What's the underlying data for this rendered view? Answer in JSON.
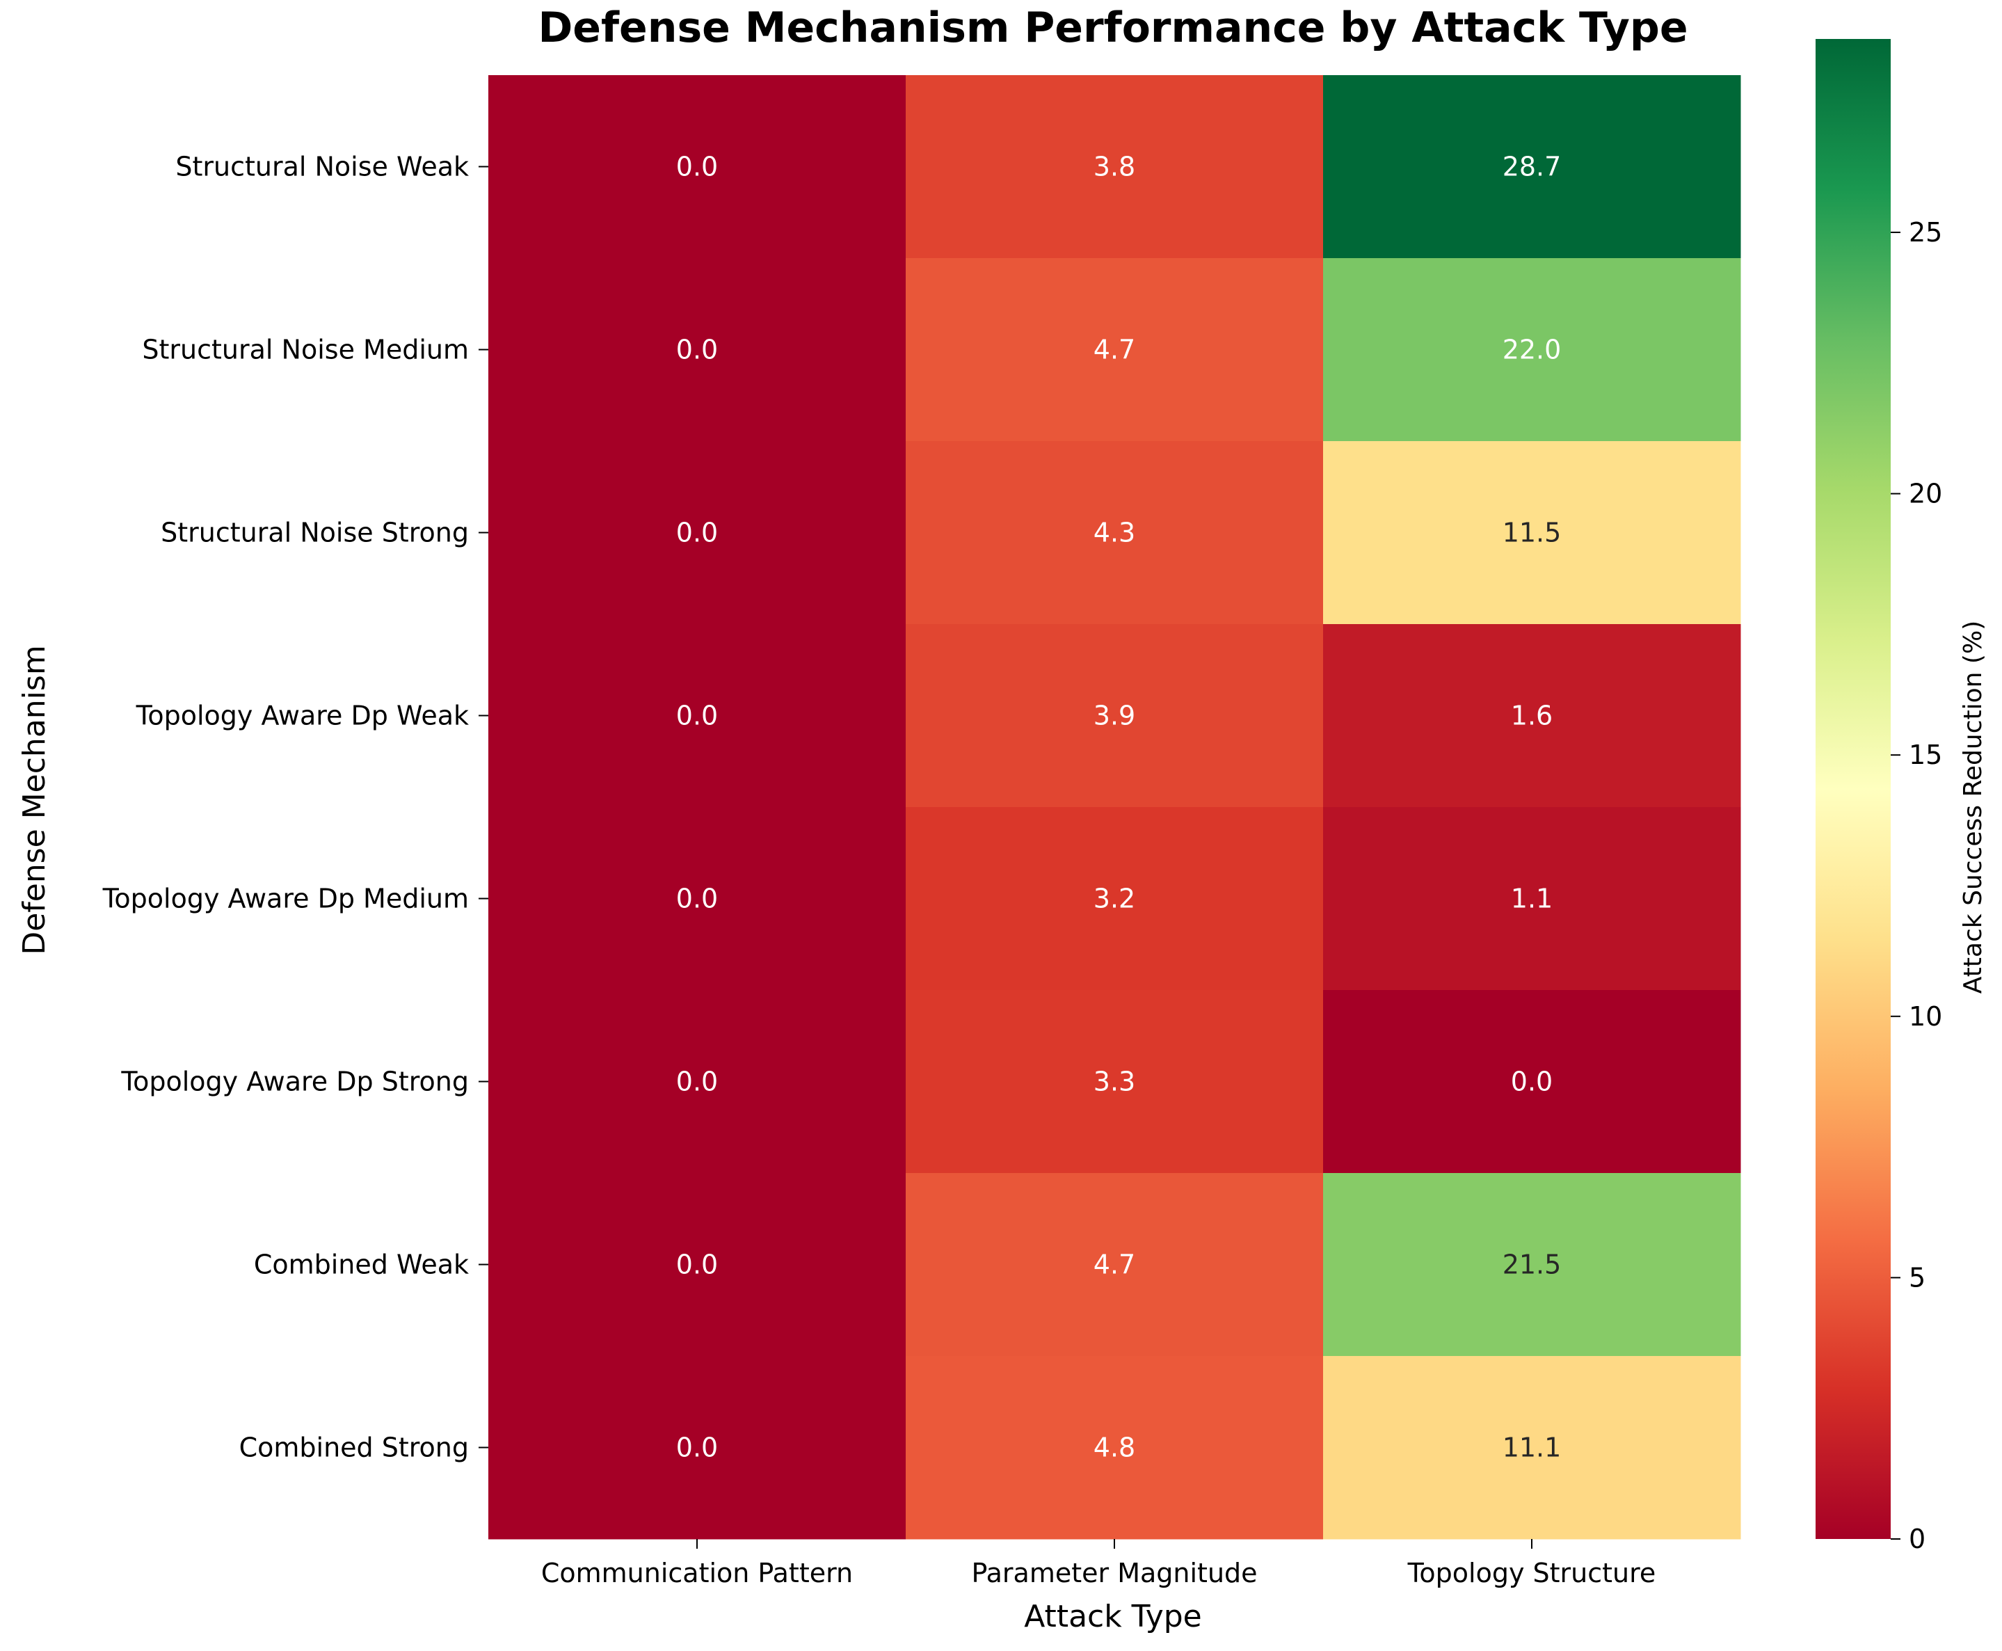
{
  "chart_data": {
    "type": "heatmap",
    "title": "Defense Mechanism Performance by Attack Type",
    "xlabel": "Attack Type",
    "ylabel": "Defense Mechanism",
    "colorbar_label": "Attack Success Reduction (%)",
    "columns": [
      "Communication Pattern",
      "Parameter Magnitude",
      "Topology Structure"
    ],
    "rows": [
      "Structural Noise Weak",
      "Structural Noise Medium",
      "Structural Noise Strong",
      "Topology Aware Dp Weak",
      "Topology Aware Dp Medium",
      "Topology Aware Dp Strong",
      "Combined Weak",
      "Combined Strong"
    ],
    "values": [
      [
        0.0,
        3.8,
        28.7
      ],
      [
        0.0,
        4.7,
        22.0
      ],
      [
        0.0,
        4.3,
        11.5
      ],
      [
        0.0,
        3.9,
        1.6
      ],
      [
        0.0,
        3.2,
        1.1
      ],
      [
        0.0,
        3.3,
        0.0
      ],
      [
        0.0,
        4.7,
        21.5
      ],
      [
        0.0,
        4.8,
        11.1
      ]
    ],
    "value_labels": [
      [
        "0.0",
        "3.8",
        "28.7"
      ],
      [
        "0.0",
        "4.7",
        "22.0"
      ],
      [
        "0.0",
        "4.3",
        "11.5"
      ],
      [
        "0.0",
        "3.9",
        "1.6"
      ],
      [
        "0.0",
        "3.2",
        "1.1"
      ],
      [
        "0.0",
        "3.3",
        "0.0"
      ],
      [
        "0.0",
        "4.7",
        "21.5"
      ],
      [
        "0.0",
        "4.8",
        "11.1"
      ]
    ],
    "colormap": "RdYlGn",
    "color_range": [
      0,
      28.7
    ],
    "colorbar_ticks": [
      0,
      5,
      10,
      15,
      20,
      25
    ],
    "colorbar_tick_labels": [
      "0",
      "5",
      "10",
      "15",
      "20",
      "25"
    ]
  }
}
